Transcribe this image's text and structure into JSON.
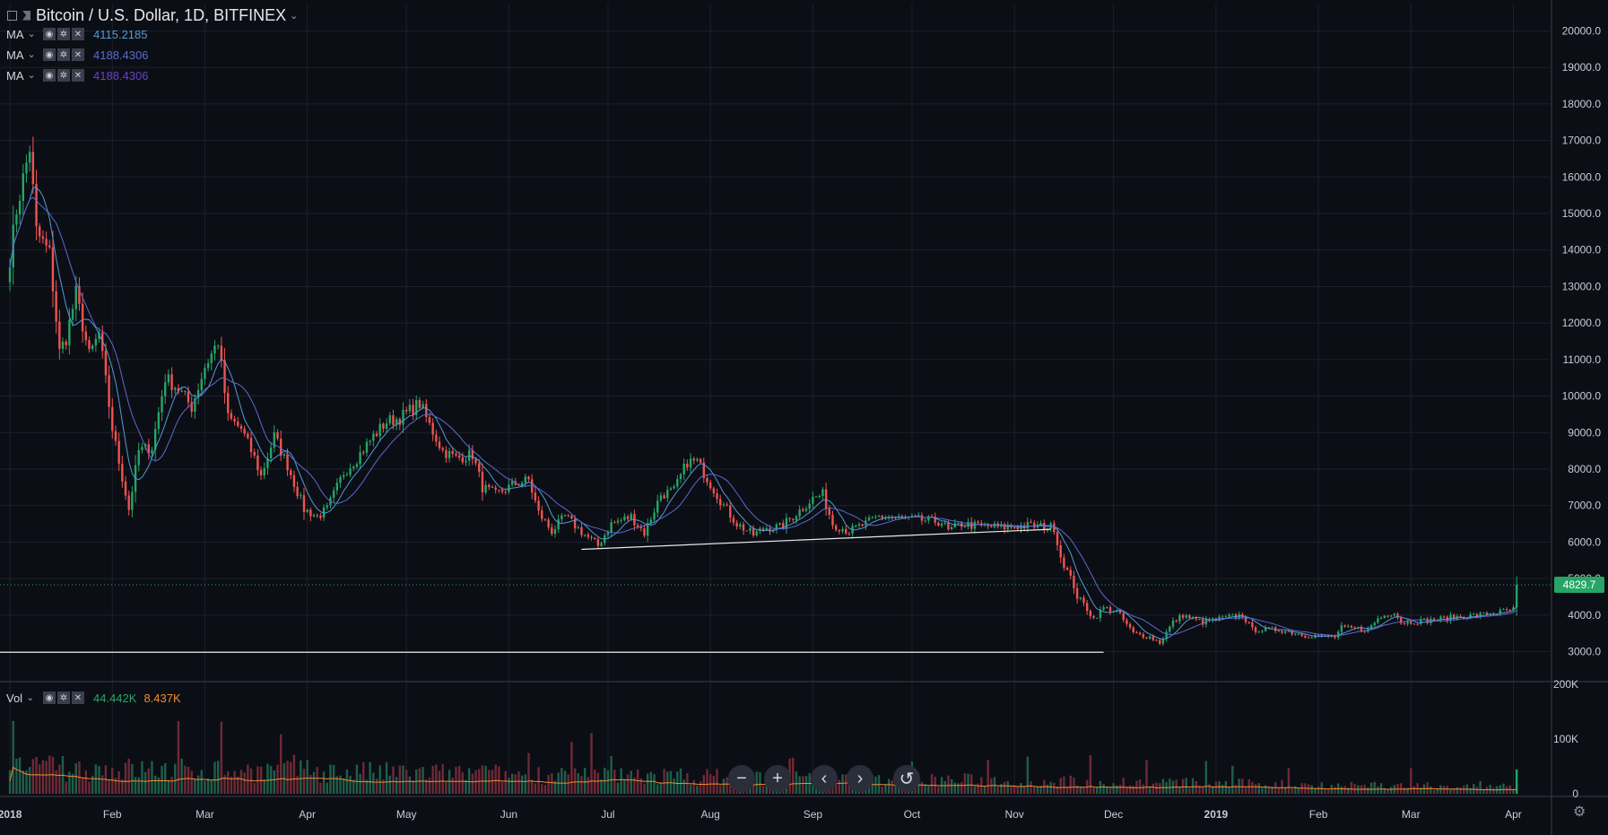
{
  "header": {
    "title": "Bitcoin / U.S. Dollar, 1D, BITFINEX",
    "indicators": [
      {
        "label": "MA",
        "value": "4115.2185",
        "color": "#4f9bd7"
      },
      {
        "label": "MA",
        "value": "4188.4306",
        "color": "#5b6ad0"
      },
      {
        "label": "MA",
        "value": "4188.4306",
        "color": "#6644c8"
      }
    ],
    "volume": {
      "label": "Vol",
      "value": "44.442K",
      "ma_value": "8.437K",
      "value_color": "#26a566",
      "ma_color": "#f08b34"
    }
  },
  "price_badge": "4829.7",
  "nav_buttons": [
    "zoom-out",
    "zoom-in",
    "scroll-left",
    "scroll-right",
    "reset"
  ],
  "colors": {
    "up": "#26a566",
    "down": "#ef5350",
    "background": "#0c0e15",
    "grid": "#1c202b",
    "trendline": "#e8e8e8",
    "vol_ma": "#f08b34"
  },
  "chart_data": {
    "type": "candlestick",
    "x_labels": [
      {
        "label": "2018",
        "date": "2018-01-01",
        "bold": true
      },
      {
        "label": "Feb",
        "date": "2018-02-01"
      },
      {
        "label": "Mar",
        "date": "2018-03-01"
      },
      {
        "label": "Apr",
        "date": "2018-04-01"
      },
      {
        "label": "May",
        "date": "2018-05-01"
      },
      {
        "label": "Jun",
        "date": "2018-06-01"
      },
      {
        "label": "Jul",
        "date": "2018-07-01"
      },
      {
        "label": "Aug",
        "date": "2018-08-01"
      },
      {
        "label": "Sep",
        "date": "2018-09-01"
      },
      {
        "label": "Oct",
        "date": "2018-10-01"
      },
      {
        "label": "Nov",
        "date": "2018-11-01"
      },
      {
        "label": "Dec",
        "date": "2018-12-01"
      },
      {
        "label": "2019",
        "date": "2019-01-01",
        "bold": true
      },
      {
        "label": "Feb",
        "date": "2019-02-01"
      },
      {
        "label": "Mar",
        "date": "2019-03-01"
      },
      {
        "label": "Apr",
        "date": "2019-04-01"
      }
    ],
    "x_range": [
      "2017-12-29",
      "2019-04-12"
    ],
    "y_ticks": [
      "3000.0",
      "4000.0",
      "5000.0",
      "6000.0",
      "7000.0",
      "8000.0",
      "9000.0",
      "10000.0",
      "11000.0",
      "12000.0",
      "13000.0",
      "14000.0",
      "15000.0",
      "16000.0",
      "17000.0",
      "18000.0",
      "19000.0",
      "20000.0"
    ],
    "y_range": [
      2250,
      20750
    ],
    "vol_ticks": [
      "0",
      "100K",
      "200K"
    ],
    "vol_range": [
      0,
      200000
    ],
    "price_path": [
      [
        "2018-01-01",
        13800
      ],
      [
        "2018-01-03",
        15100
      ],
      [
        "2018-01-07",
        16800
      ],
      [
        "2018-01-09",
        14500
      ],
      [
        "2018-01-13",
        13900
      ],
      [
        "2018-01-16",
        11200
      ],
      [
        "2018-01-18",
        11600
      ],
      [
        "2018-01-21",
        12800
      ],
      [
        "2018-01-25",
        11100
      ],
      [
        "2018-01-28",
        11700
      ],
      [
        "2018-02-01",
        9100
      ],
      [
        "2018-02-03",
        8200
      ],
      [
        "2018-02-06",
        6900
      ],
      [
        "2018-02-09",
        8500
      ],
      [
        "2018-02-13",
        8600
      ],
      [
        "2018-02-17",
        10500
      ],
      [
        "2018-02-21",
        10200
      ],
      [
        "2018-02-25",
        9700
      ],
      [
        "2018-03-01",
        10800
      ],
      [
        "2018-03-05",
        11500
      ],
      [
        "2018-03-08",
        9400
      ],
      [
        "2018-03-12",
        9100
      ],
      [
        "2018-03-16",
        8300
      ],
      [
        "2018-03-18",
        7800
      ],
      [
        "2018-03-22",
        8900
      ],
      [
        "2018-03-26",
        8100
      ],
      [
        "2018-03-31",
        6900
      ],
      [
        "2018-04-04",
        6700
      ],
      [
        "2018-04-07",
        6900
      ],
      [
        "2018-04-12",
        7900
      ],
      [
        "2018-04-16",
        8300
      ],
      [
        "2018-04-21",
        8900
      ],
      [
        "2018-04-25",
        9300
      ],
      [
        "2018-04-29",
        9400
      ],
      [
        "2018-05-05",
        9800
      ],
      [
        "2018-05-08",
        9200
      ],
      [
        "2018-05-12",
        8500
      ],
      [
        "2018-05-16",
        8300
      ],
      [
        "2018-05-21",
        8400
      ],
      [
        "2018-05-24",
        7500
      ],
      [
        "2018-05-28",
        7300
      ],
      [
        "2018-06-03",
        7600
      ],
      [
        "2018-06-07",
        7700
      ],
      [
        "2018-06-10",
        6800
      ],
      [
        "2018-06-14",
        6300
      ],
      [
        "2018-06-18",
        6700
      ],
      [
        "2018-06-24",
        6200
      ],
      [
        "2018-06-28",
        5900
      ],
      [
        "2018-07-02",
        6500
      ],
      [
        "2018-07-08",
        6700
      ],
      [
        "2018-07-12",
        6250
      ],
      [
        "2018-07-17",
        7300
      ],
      [
        "2018-07-21",
        7400
      ],
      [
        "2018-07-25",
        8200
      ],
      [
        "2018-07-28",
        8200
      ],
      [
        "2018-08-01",
        7600
      ],
      [
        "2018-08-05",
        7000
      ],
      [
        "2018-08-09",
        6500
      ],
      [
        "2018-08-14",
        6200
      ],
      [
        "2018-08-18",
        6400
      ],
      [
        "2018-08-22",
        6400
      ],
      [
        "2018-08-26",
        6700
      ],
      [
        "2018-09-01",
        7200
      ],
      [
        "2018-09-04",
        7300
      ],
      [
        "2018-09-07",
        6500
      ],
      [
        "2018-09-12",
        6300
      ],
      [
        "2018-09-17",
        6500
      ],
      [
        "2018-09-21",
        6700
      ],
      [
        "2018-09-27",
        6650
      ],
      [
        "2018-10-04",
        6600
      ],
      [
        "2018-10-10",
        6550
      ],
      [
        "2018-10-12",
        6300
      ],
      [
        "2018-10-16",
        6500
      ],
      [
        "2018-10-20",
        6450
      ],
      [
        "2018-10-28",
        6400
      ],
      [
        "2018-11-05",
        6450
      ],
      [
        "2018-11-13",
        6400
      ],
      [
        "2018-11-15",
        5600
      ],
      [
        "2018-11-19",
        4800
      ],
      [
        "2018-11-20",
        4500
      ],
      [
        "2018-11-22",
        4300
      ],
      [
        "2018-11-25",
        3900
      ],
      [
        "2018-11-28",
        4200
      ],
      [
        "2018-12-02",
        4100
      ],
      [
        "2018-12-07",
        3500
      ],
      [
        "2018-12-12",
        3400
      ],
      [
        "2018-12-15",
        3250
      ],
      [
        "2018-12-19",
        3800
      ],
      [
        "2018-12-22",
        4000
      ],
      [
        "2018-12-28",
        3800
      ],
      [
        "2019-01-02",
        3900
      ],
      [
        "2019-01-09",
        4000
      ],
      [
        "2019-01-12",
        3600
      ],
      [
        "2019-01-20",
        3600
      ],
      [
        "2019-01-28",
        3450
      ],
      [
        "2019-02-06",
        3400
      ],
      [
        "2019-02-08",
        3650
      ],
      [
        "2019-02-16",
        3600
      ],
      [
        "2019-02-19",
        3900
      ],
      [
        "2019-02-24",
        4100
      ],
      [
        "2019-02-26",
        3800
      ],
      [
        "2019-03-06",
        3850
      ],
      [
        "2019-03-15",
        3950
      ],
      [
        "2019-03-22",
        4000
      ],
      [
        "2019-03-29",
        4100
      ],
      [
        "2019-04-01",
        4150
      ],
      [
        "2019-04-02",
        4829.7
      ]
    ],
    "trendlines": [
      {
        "from": [
          "2018-06-23",
          5800
        ],
        "to": [
          "2018-11-12",
          6350
        ]
      },
      {
        "from": [
          "2017-12-29",
          2980
        ],
        "to": [
          "2018-11-28",
          2980
        ]
      }
    ],
    "last_price": 4829.7,
    "last_volume": 44442,
    "vol_ma_last": 8437
  }
}
